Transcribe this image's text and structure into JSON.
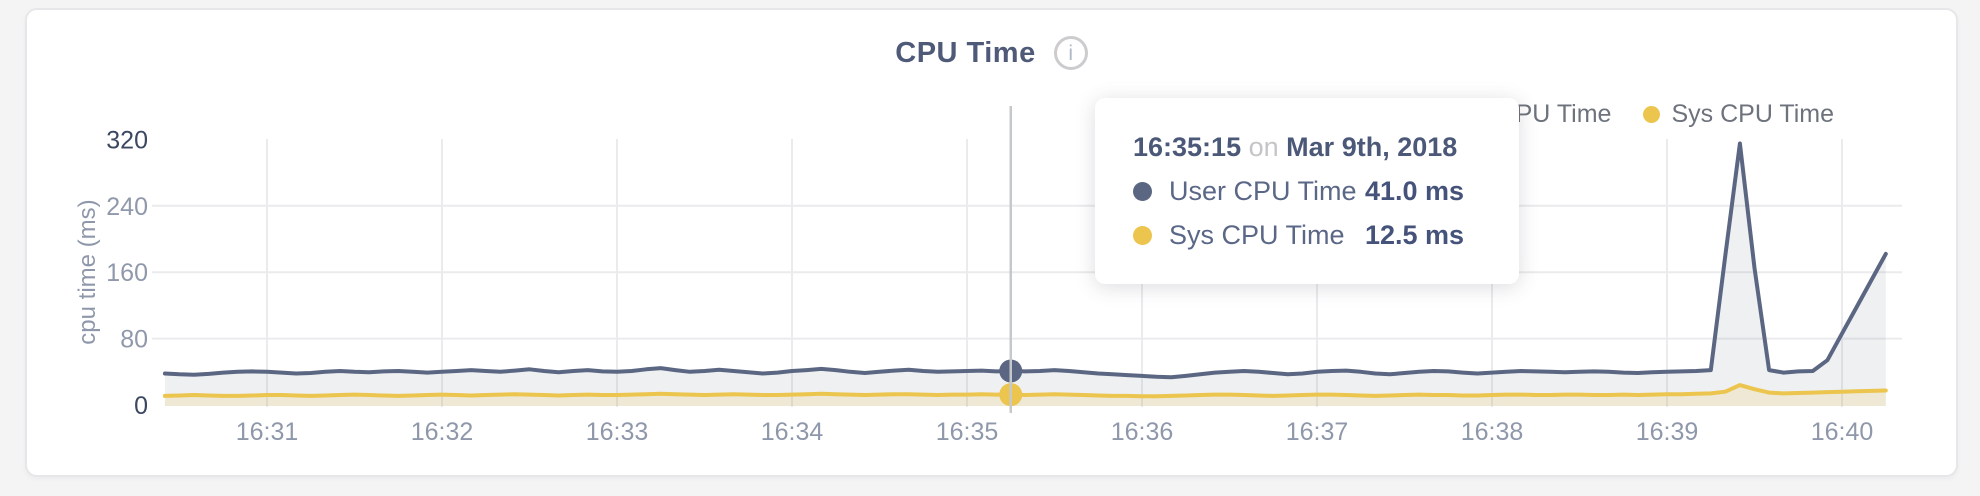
{
  "page": {
    "background": "#f4f4f5"
  },
  "card": {
    "title": "CPU Time",
    "info_icon_glyph": "i"
  },
  "legend": {
    "items": [
      {
        "label": "User CPU Time",
        "color": "#5b6782"
      },
      {
        "label": "Sys CPU Time",
        "color": "#ecc54e"
      }
    ]
  },
  "tooltip": {
    "time": "16:35:15",
    "connector": "on",
    "date": "Mar 9th, 2018",
    "rows": [
      {
        "label": "User CPU Time",
        "value": "41.0 ms",
        "color": "#5b6782"
      },
      {
        "label": "Sys CPU Time",
        "value": "12.5 ms",
        "color": "#ecc54e"
      }
    ]
  },
  "chart_data": {
    "type": "area",
    "title": "CPU Time",
    "xlabel": "",
    "ylabel": "cpu time (ms)",
    "ylim": [
      0,
      320
    ],
    "y_ticks": [
      0,
      80,
      160,
      240,
      320
    ],
    "x_ticks": [
      "16:31",
      "16:32",
      "16:33",
      "16:34",
      "16:35",
      "16:36",
      "16:37",
      "16:38",
      "16:39",
      "16:40"
    ],
    "grid": true,
    "legend_position": "top-right",
    "start_time": "16:30:25",
    "step_seconds": 5,
    "series": [
      {
        "name": "User CPU Time",
        "color": "#5b6782",
        "fill": "rgba(91,103,130,0.10)",
        "unit": "ms",
        "values": [
          38,
          37,
          36.5,
          37.5,
          39,
          40,
          40.5,
          40,
          39,
          38,
          38.5,
          40,
          41,
          40,
          39.5,
          40.5,
          41,
          40,
          39,
          40,
          41,
          42,
          41,
          40,
          41.5,
          43,
          41,
          39.5,
          41,
          42,
          40.5,
          40,
          41,
          43,
          44.5,
          42,
          40,
          41,
          42.5,
          41,
          39.5,
          38,
          39,
          41,
          42,
          43.5,
          42,
          40,
          38.5,
          40,
          41.5,
          42.5,
          41,
          40,
          40.5,
          41,
          41.5,
          40.5,
          41,
          40.5,
          41,
          42,
          41,
          39.5,
          38,
          37,
          36,
          35,
          34,
          33.5,
          35,
          37,
          39,
          40,
          41,
          40,
          38.5,
          37,
          38,
          40,
          41,
          41.5,
          40,
          38,
          37,
          38.5,
          40,
          41,
          40.5,
          39,
          38,
          39,
          40,
          41,
          40.5,
          40,
          39.5,
          40,
          40.5,
          40,
          39,
          38.5,
          39.5,
          40,
          40.5,
          41,
          42,
          180,
          315,
          165,
          42,
          39,
          40.5,
          41,
          54,
          86,
          118,
          150,
          182
        ]
      },
      {
        "name": "Sys CPU Time",
        "color": "#ecc54e",
        "fill": "rgba(236,197,78,0.18)",
        "unit": "ms",
        "values": [
          11,
          11.5,
          12,
          11.5,
          11,
          11,
          11.5,
          12,
          12,
          11.5,
          11,
          11.5,
          12,
          12.5,
          12,
          11.5,
          11,
          11.5,
          12,
          12.5,
          12,
          11.5,
          12,
          12.5,
          13,
          12.5,
          12,
          11.5,
          12,
          12.5,
          12,
          12,
          12.5,
          13,
          13.5,
          13,
          12.5,
          12,
          12.5,
          13,
          12.5,
          12,
          12,
          12.5,
          13,
          13.5,
          13,
          12.5,
          12,
          12.5,
          13,
          13,
          12.5,
          12,
          12.5,
          12.5,
          13,
          12.5,
          12.5,
          12,
          12.5,
          13,
          12.5,
          12,
          11.5,
          11,
          11,
          10.5,
          10.5,
          11,
          11.5,
          12,
          12.5,
          12.5,
          12,
          11.5,
          11,
          11.5,
          12,
          12.5,
          12.5,
          12,
          11.5,
          11,
          11.5,
          12,
          12.5,
          12,
          12,
          11.5,
          11.5,
          12,
          12.5,
          12.5,
          12,
          12,
          12.5,
          12.5,
          12,
          12,
          12.5,
          12,
          12.5,
          13,
          13,
          13.5,
          14,
          16,
          24,
          19,
          15,
          14,
          14.5,
          15,
          15.5,
          16,
          16.5,
          17,
          17.5
        ]
      }
    ],
    "highlight": {
      "index": 58,
      "time": "16:35:15",
      "date": "Mar 9th, 2018",
      "crosshair_color": "#c6c8cc"
    }
  }
}
